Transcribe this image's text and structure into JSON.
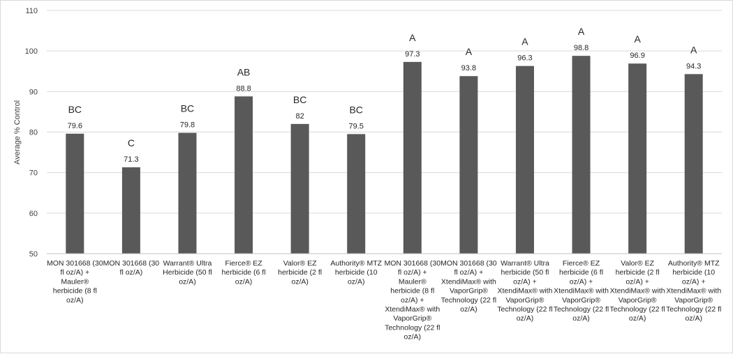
{
  "chart_data": {
    "type": "bar",
    "ylabel": "Average % Control",
    "xlabel": "",
    "ylim": [
      50,
      110
    ],
    "yticks": [
      50,
      60,
      70,
      80,
      90,
      100,
      110
    ],
    "grid": true,
    "bar_color": "#595959",
    "categories": [
      [
        "MON 301668 (30",
        "fl oz/A) +",
        "Mauler®",
        "herbicide (8 fl",
        "oz/A)"
      ],
      [
        "MON 301668 (30",
        "fl oz/A)"
      ],
      [
        "Warrant® Ultra",
        "Herbicide (50 fl",
        "oz/A)"
      ],
      [
        "Fierce® EZ",
        "herbicide (6 fl",
        "oz/A)"
      ],
      [
        "Valor® EZ",
        "herbicide (2 fl",
        "oz/A)"
      ],
      [
        "Authority® MTZ",
        "herbicide (10",
        "oz/A)"
      ],
      [
        "MON 301668 (30",
        "fl oz/A) +",
        "Mauler®",
        "herbicide (8 fl",
        "oz/A) +",
        "XtendiMax® with",
        "VaporGrip®",
        "Technology (22 fl",
        "oz/A)"
      ],
      [
        "MON 301668 (30",
        "fl oz/A) +",
        "XtendiMax® with",
        "VaporGrip®",
        "Technology (22 fl",
        "oz/A)"
      ],
      [
        "Warrant® Ultra",
        "herbicide (50 fl",
        "oz/A) +",
        "XtendiMax® with",
        "VaporGrip®",
        "Technology (22 fl",
        "oz/A)"
      ],
      [
        "Fierce® EZ",
        "herbicide (6 fl",
        "oz/A) +",
        "XtendiMax® with",
        "VaporGrip®",
        "Technology (22 fl",
        "oz/A)"
      ],
      [
        "Valor® EZ",
        "herbicide (2 fl",
        "oz/A) +",
        "XtendiMax® with",
        "VaporGrip®",
        "Technology (22 fl",
        "oz/A)"
      ],
      [
        "Authority® MTZ",
        "herbicide (10",
        "oz/A) +",
        "XtendiMax® with",
        "VaporGrip®",
        "Technology (22 fl",
        "oz/A)"
      ]
    ],
    "values": [
      79.6,
      71.3,
      79.8,
      88.8,
      82,
      79.5,
      97.3,
      93.8,
      96.3,
      98.8,
      96.9,
      94.3
    ],
    "data_labels": [
      "79.6",
      "71.3",
      "79.8",
      "88.8",
      "82",
      "79.5",
      "97.3",
      "93.8",
      "96.3",
      "98.8",
      "96.9",
      "94.3"
    ],
    "significance_letters": [
      "BC",
      "C",
      "BC",
      "AB",
      "BC",
      "BC",
      "A",
      "A",
      "A",
      "A",
      "A",
      "A"
    ]
  }
}
